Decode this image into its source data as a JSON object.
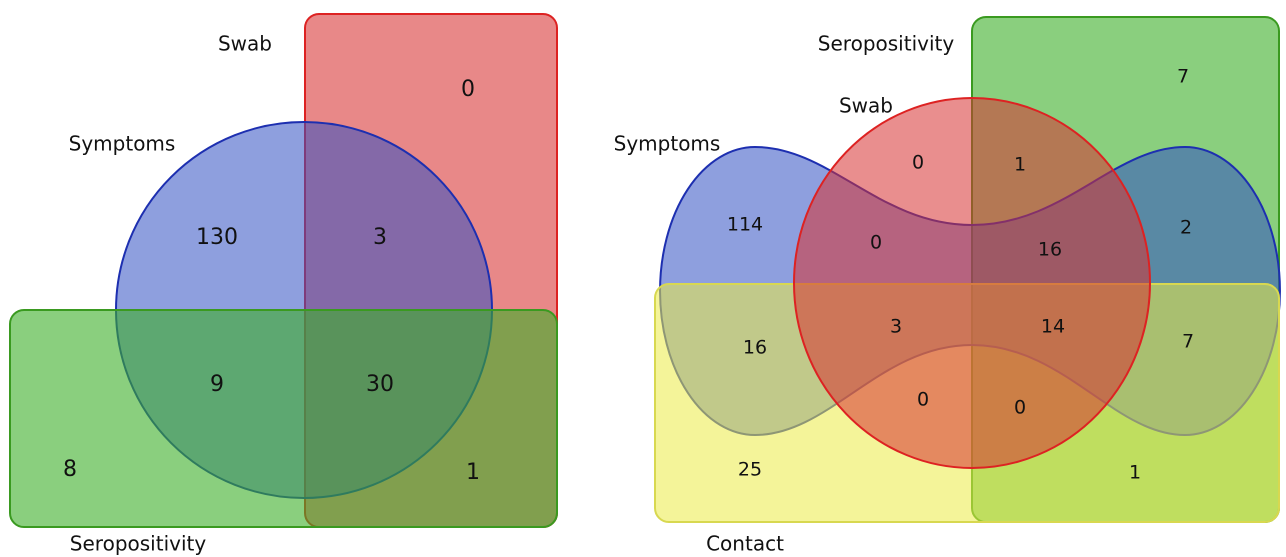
{
  "diagrams": [
    {
      "set_labels": [
        "Swab",
        "Symptoms",
        "Seropositivity"
      ],
      "regions": [
        "0",
        "130",
        "3",
        "9",
        "30",
        "8",
        "1"
      ]
    },
    {
      "set_labels": [
        "Seropositivity",
        "Swab",
        "Symptoms",
        "Contact"
      ],
      "regions": [
        "7",
        "0",
        "1",
        "114",
        "0",
        "16",
        "2",
        "16",
        "3",
        "14",
        "7",
        "0",
        "0",
        "25",
        "1"
      ]
    }
  ]
}
